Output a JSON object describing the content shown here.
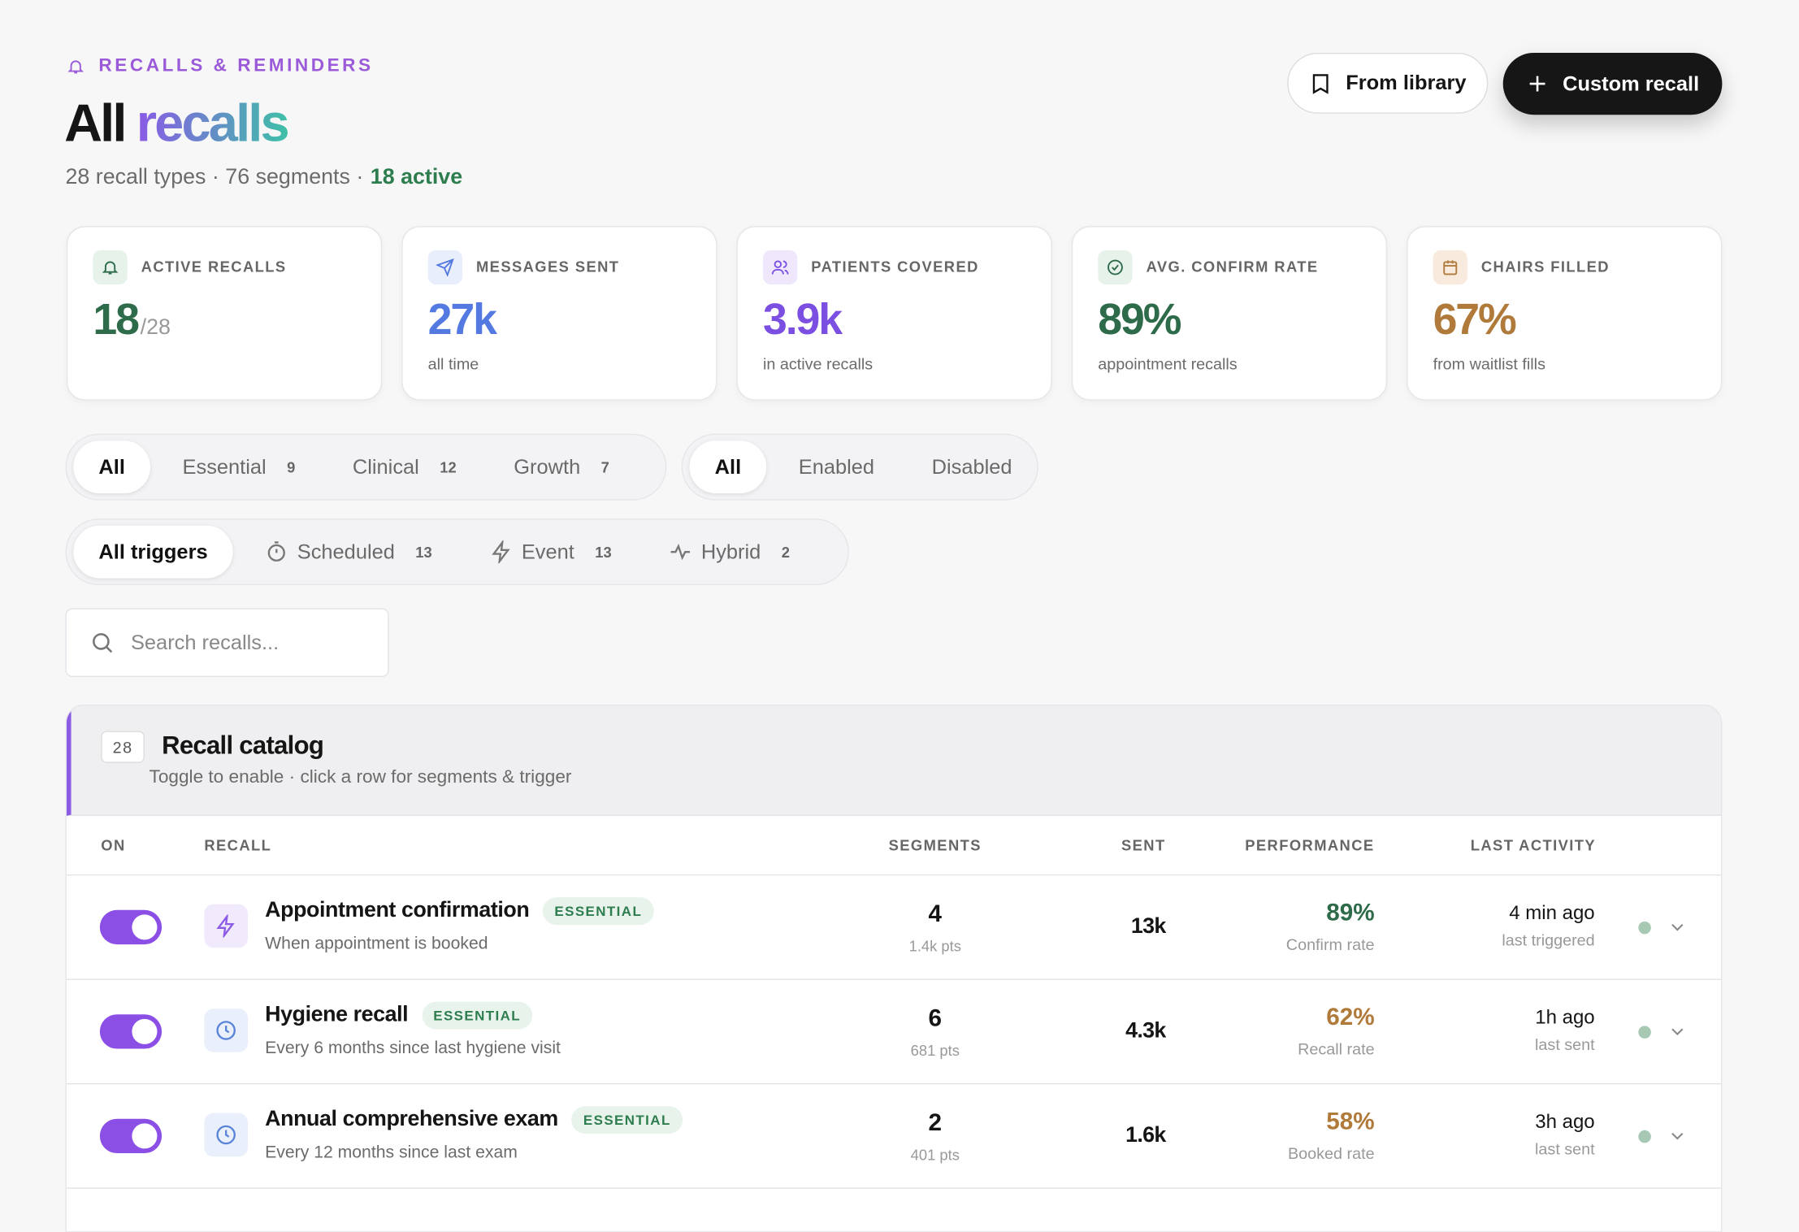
{
  "header": {
    "eyebrow": "RECALLS & REMINDERS",
    "title_1": "All",
    "title_2": "recalls",
    "subtitle": "28 recall types · 76 segments ·",
    "subtitle_active": "18 active"
  },
  "actions": [
    "From library",
    "Custom recall"
  ],
  "stats": [
    {
      "label": "ACTIVE RECALLS",
      "value": "18",
      "suffix": "/28",
      "color": "#2e6b4a",
      "icon_bg": "#e6f2ea"
    },
    {
      "label": "MESSAGES SENT",
      "value": "27k",
      "note": "all time",
      "color": "#5479e0",
      "icon_bg": "#e8eefb"
    },
    {
      "label": "PATIENTS COVERED",
      "value": "3.9k",
      "note": "in active recalls",
      "color": "#7b4fe2",
      "icon_bg": "#efe8fc"
    },
    {
      "label": "AVG. CONFIRM RATE",
      "value": "89%",
      "note": "appointment recalls",
      "color": "#2e6b4a",
      "icon_bg": "#e6f2ea"
    },
    {
      "label": "CHAIRS FILLED",
      "value": "67%",
      "note": "from waitlist fills",
      "color": "#b07a3a",
      "icon_bg": "#f8ebdd"
    }
  ],
  "filters": {
    "category": [
      {
        "label": "All"
      },
      {
        "label": "Essential",
        "count": "9"
      },
      {
        "label": "Clinical",
        "count": "12"
      },
      {
        "label": "Growth",
        "count": "7"
      }
    ],
    "status": [
      {
        "label": "All"
      },
      {
        "label": "Enabled"
      },
      {
        "label": "Disabled"
      }
    ],
    "trigger": [
      {
        "label": "All triggers"
      },
      {
        "label": "Scheduled",
        "count": "13"
      },
      {
        "label": "Event",
        "count": "13"
      },
      {
        "label": "Hybrid",
        "count": "2"
      }
    ]
  },
  "search_placeholder": "Search recalls...",
  "catalog": {
    "count": "28",
    "title": "Recall catalog",
    "subtitle": "Toggle to enable · click a row for segments & trigger",
    "columns": [
      "ON",
      "RECALL",
      "SEGMENTS",
      "SENT",
      "PERFORMANCE",
      "LAST ACTIVITY"
    ],
    "rows": [
      {
        "name": "Appointment confirmation",
        "tag": "ESSENTIAL",
        "desc": "When appointment is booked",
        "segments": "4",
        "pts": "1.4k pts",
        "sent": "13k",
        "perf": "89%",
        "perf_label": "Confirm rate",
        "perf_color": "#2e6b4a",
        "last": "4 min ago",
        "last_label": "last triggered",
        "icon": "bolt"
      },
      {
        "name": "Hygiene recall",
        "tag": "ESSENTIAL",
        "desc": "Every 6 months since last hygiene visit",
        "segments": "6",
        "pts": "681 pts",
        "sent": "4.3k",
        "perf": "62%",
        "perf_label": "Recall rate",
        "perf_color": "#b07a3a",
        "last": "1h ago",
        "last_label": "last sent",
        "icon": "clock"
      },
      {
        "name": "Annual comprehensive exam",
        "tag": "ESSENTIAL",
        "desc": "Every 12 months since last exam",
        "segments": "2",
        "pts": "401 pts",
        "sent": "1.6k",
        "perf": "58%",
        "perf_label": "Booked rate",
        "perf_color": "#b07a3a",
        "last": "3h ago",
        "last_label": "last sent",
        "icon": "clock"
      }
    ]
  }
}
